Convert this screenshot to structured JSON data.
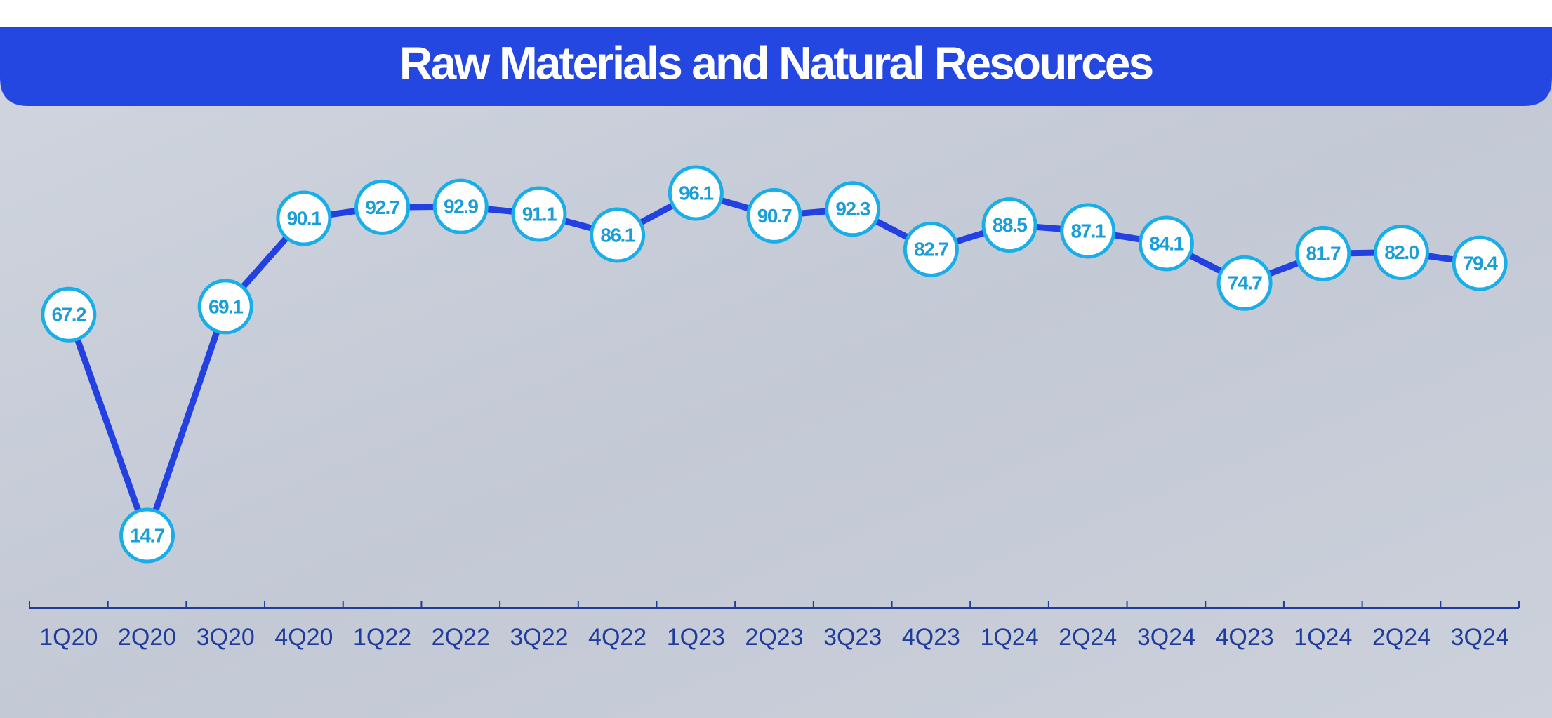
{
  "chart_data": {
    "type": "line",
    "title": "Raw Materials and Natural Resources",
    "categories": [
      "1Q20",
      "2Q20",
      "3Q20",
      "4Q20",
      "1Q22",
      "2Q22",
      "3Q22",
      "4Q22",
      "1Q23",
      "2Q23",
      "3Q23",
      "4Q23",
      "1Q24",
      "2Q24",
      "3Q24",
      "4Q23",
      "1Q24",
      "2Q24",
      "3Q24"
    ],
    "values": [
      67.2,
      14.7,
      69.1,
      90.1,
      92.7,
      92.9,
      91.1,
      86.1,
      96.1,
      90.7,
      92.3,
      82.7,
      88.5,
      87.1,
      84.1,
      74.7,
      81.7,
      82.0,
      79.4
    ],
    "value_labels": [
      "67.2",
      "14.7",
      "69.1",
      "90.1",
      "92.7",
      "92.9",
      "91.1",
      "86.1",
      "96.1",
      "90.7",
      "92.3",
      "82.7",
      "88.5",
      "87.1",
      "84.1",
      "74.7",
      "81.7",
      "82.0",
      "79.4"
    ],
    "color": "#2340e0",
    "marker_color": "#1aaee8"
  }
}
